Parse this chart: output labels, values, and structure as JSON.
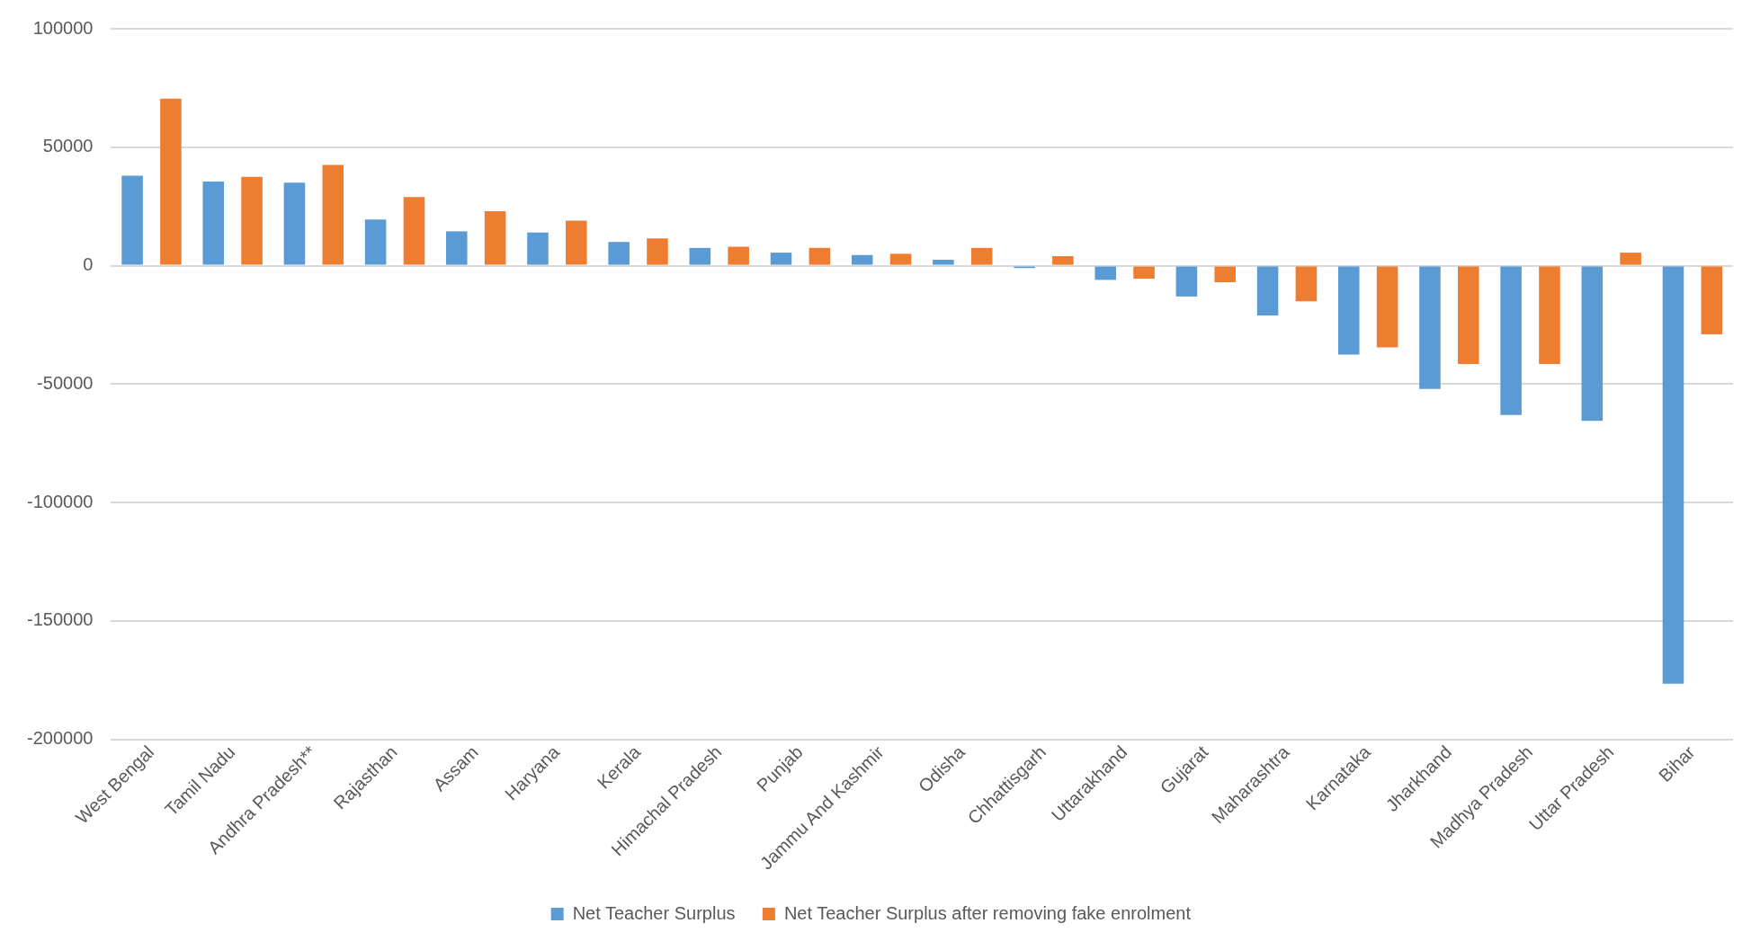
{
  "chart_data": {
    "type": "bar",
    "categories": [
      "West Bengal",
      "Tamil Nadu",
      "Andhra Pradesh**",
      "Rajasthan",
      "Assam",
      "Haryana",
      "Kerala",
      "Himachal Pradesh",
      "Punjab",
      "Jammu And Kashmir",
      "Odisha",
      "Chhattisgarh",
      "Uttarakhand",
      "Gujarat",
      "Maharashtra",
      "Karnataka",
      "Jharkhand",
      "Madhya Pradesh",
      "Uttar Pradesh",
      "Bihar"
    ],
    "series": [
      {
        "name": "Net Teacher Surplus",
        "color": "#5b9bd5",
        "values": [
          38000,
          35500,
          35000,
          19500,
          14500,
          14000,
          10000,
          7500,
          5500,
          4500,
          2500,
          -1000,
          -6000,
          -13000,
          -21000,
          -37500,
          -52000,
          -63000,
          -65500,
          -176500
        ]
      },
      {
        "name": "Net Teacher Surplus after removing fake enrolment",
        "color": "#ed7d31",
        "values": [
          70500,
          37500,
          42500,
          29000,
          23000,
          19000,
          11500,
          8000,
          7500,
          5000,
          7500,
          4000,
          -5500,
          -7000,
          -15000,
          -34500,
          -41500,
          -41500,
          5500,
          -29000
        ]
      }
    ],
    "ylim": [
      -200000,
      100000
    ],
    "yticks": [
      -200000,
      -150000,
      -100000,
      -50000,
      0,
      50000,
      100000
    ],
    "grid": "y",
    "legend": "bottom"
  }
}
